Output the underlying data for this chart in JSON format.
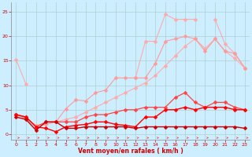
{
  "background_color": "#cceeff",
  "grid_color": "#aacccc",
  "xlabel": "Vent moyen/en rafales ( km/h )",
  "xlim": [
    -0.5,
    23.5
  ],
  "ylim": [
    -1.2,
    27
  ],
  "xticks": [
    0,
    1,
    2,
    3,
    4,
    5,
    6,
    7,
    8,
    9,
    10,
    11,
    12,
    13,
    14,
    15,
    16,
    17,
    18,
    19,
    20,
    21,
    22,
    23
  ],
  "yticks": [
    0,
    5,
    10,
    15,
    20,
    25
  ],
  "series": [
    {
      "name": "light_pink_top",
      "x": [
        0,
        1,
        2,
        3,
        4,
        5,
        6,
        7,
        8,
        9,
        10,
        11,
        12,
        13,
        14,
        15,
        16,
        17,
        18,
        19,
        20,
        21,
        22,
        23
      ],
      "y": [
        15.2,
        10.2,
        null,
        null,
        null,
        null,
        null,
        null,
        null,
        null,
        null,
        null,
        11.5,
        19.0,
        19.0,
        24.5,
        23.5,
        23.5,
        23.5,
        null,
        23.5,
        18.5,
        16.5,
        13.5
      ],
      "color": "#ffaaaa",
      "marker": true,
      "markersize": 2.5,
      "linewidth": 0.8
    },
    {
      "name": "light_pink_upper_slope",
      "x": [
        0,
        1,
        2,
        3,
        4,
        5,
        6,
        7,
        8,
        9,
        10,
        11,
        12,
        13,
        14,
        15,
        16,
        17,
        18,
        19,
        20,
        21,
        22,
        23
      ],
      "y": [
        4.0,
        3.2,
        1.8,
        2.0,
        2.5,
        3.0,
        3.5,
        4.5,
        5.5,
        6.5,
        7.5,
        8.5,
        9.5,
        10.5,
        12.0,
        14.0,
        16.0,
        18.0,
        19.5,
        17.5,
        19.5,
        17.0,
        15.5,
        13.5
      ],
      "color": "#ffaaaa",
      "marker": true,
      "markersize": 2.5,
      "linewidth": 0.8
    },
    {
      "name": "salmon_mid",
      "x": [
        0,
        1,
        2,
        3,
        4,
        5,
        6,
        7,
        8,
        9,
        10,
        11,
        12,
        13,
        14,
        15,
        16,
        17,
        18,
        19,
        20,
        21,
        22,
        23
      ],
      "y": [
        4.0,
        3.2,
        1.8,
        2.0,
        2.5,
        5.2,
        7.0,
        6.8,
        8.5,
        9.0,
        11.5,
        11.5,
        11.5,
        11.5,
        14.5,
        19.0,
        19.5,
        20.0,
        19.5,
        17.0,
        19.5,
        17.0,
        16.5,
        13.5
      ],
      "color": "#ff9999",
      "marker": true,
      "markersize": 2.5,
      "linewidth": 0.8
    },
    {
      "name": "red_upper",
      "x": [
        0,
        1,
        2,
        3,
        4,
        5,
        6,
        7,
        8,
        9,
        10,
        11,
        12,
        13,
        14,
        15,
        16,
        17,
        18,
        19,
        20,
        21,
        22,
        23
      ],
      "y": [
        4.0,
        3.5,
        1.5,
        2.5,
        2.5,
        2.5,
        2.5,
        3.5,
        4.0,
        4.0,
        4.5,
        5.0,
        5.0,
        5.5,
        5.5,
        5.5,
        7.5,
        8.5,
        6.5,
        5.5,
        6.5,
        6.5,
        5.5,
        5.0
      ],
      "color": "#ff4444",
      "marker": true,
      "markersize": 2.5,
      "linewidth": 0.9
    },
    {
      "name": "red_main",
      "x": [
        0,
        1,
        2,
        3,
        4,
        5,
        6,
        7,
        8,
        9,
        10,
        11,
        12,
        13,
        14,
        15,
        16,
        17,
        18,
        19,
        20,
        21,
        22,
        23
      ],
      "y": [
        4.0,
        3.5,
        1.5,
        1.2,
        0.5,
        1.5,
        1.8,
        2.0,
        2.5,
        2.5,
        2.0,
        1.8,
        1.5,
        3.5,
        3.5,
        5.0,
        5.0,
        5.5,
        5.0,
        5.5,
        5.5,
        5.5,
        5.0,
        5.0
      ],
      "color": "#ff0000",
      "marker": true,
      "markersize": 2.5,
      "linewidth": 1.0
    },
    {
      "name": "dark_red_flat",
      "x": [
        0,
        1,
        2,
        3,
        4,
        5,
        6,
        7,
        8,
        9,
        10,
        11,
        12,
        13,
        14,
        15,
        16,
        17,
        18,
        19,
        20,
        21,
        22,
        23
      ],
      "y": [
        3.5,
        3.0,
        0.8,
        2.5,
        2.5,
        1.2,
        1.2,
        1.5,
        1.5,
        1.5,
        1.5,
        1.5,
        1.2,
        1.5,
        1.5,
        1.5,
        1.5,
        1.5,
        1.5,
        1.5,
        1.5,
        1.5,
        1.5,
        1.2
      ],
      "color": "#cc0000",
      "marker": true,
      "markersize": 2.5,
      "linewidth": 1.0
    }
  ],
  "arrows": {
    "y": -0.75,
    "color": "#ff4444",
    "count": 24
  }
}
